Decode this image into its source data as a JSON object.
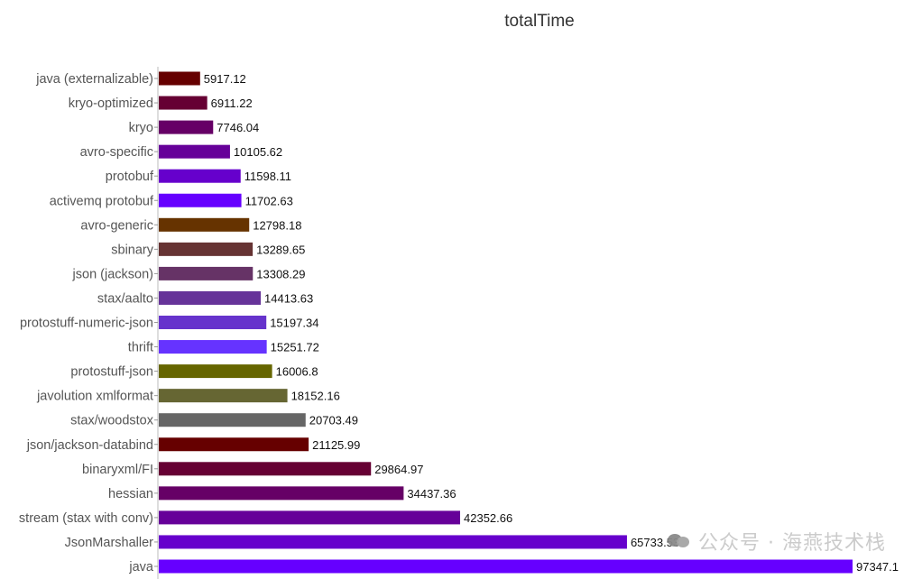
{
  "chart_data": {
    "type": "bar",
    "orientation": "horizontal",
    "title": "totalTime",
    "xlabel": "",
    "ylabel": "",
    "xlim": [
      0,
      97347.1
    ],
    "grid": false,
    "legend": "none",
    "categories": [
      "java (externalizable)",
      "kryo-optimized",
      "kryo",
      "avro-specific",
      "protobuf",
      "activemq protobuf",
      "avro-generic",
      "sbinary",
      "json (jackson)",
      "stax/aalto",
      "protostuff-numeric-json",
      "thrift",
      "protostuff-json",
      "javolution xmlformat",
      "stax/woodstox",
      "json/jackson-databind",
      "binaryxml/FI",
      "hessian",
      "stream (stax with conv)",
      "JsonMarshaller",
      "java"
    ],
    "values": [
      5917.12,
      6911.22,
      7746.04,
      10105.62,
      11598.11,
      11702.63,
      12798.18,
      13289.65,
      13308.29,
      14413.63,
      15197.34,
      15251.72,
      16006.8,
      18152.16,
      20703.49,
      21125.99,
      29864.97,
      34437.36,
      42352.66,
      65733.53,
      97347.1
    ],
    "value_labels": [
      "5917.12",
      "6911.22",
      "7746.04",
      "10105.62",
      "11598.11",
      "11702.63",
      "12798.18",
      "13289.65",
      "13308.29",
      "14413.63",
      "15197.34",
      "15251.72",
      "16006.8",
      "18152.16",
      "20703.49",
      "21125.99",
      "29864.97",
      "34437.36",
      "42352.66",
      "65733.53",
      "97347.1"
    ],
    "colors": [
      "#660000",
      "#660033",
      "#660066",
      "#660099",
      "#6600cc",
      "#6600ff",
      "#663300",
      "#663333",
      "#663366",
      "#663399",
      "#6633cc",
      "#6633ff",
      "#666600",
      "#666633",
      "#666666",
      "#660000",
      "#660033",
      "#660066",
      "#660099",
      "#6600cc",
      "#6600ff"
    ]
  },
  "watermark": {
    "text": "公众号 · 海燕技术栈",
    "icon": "wechat-icon"
  }
}
